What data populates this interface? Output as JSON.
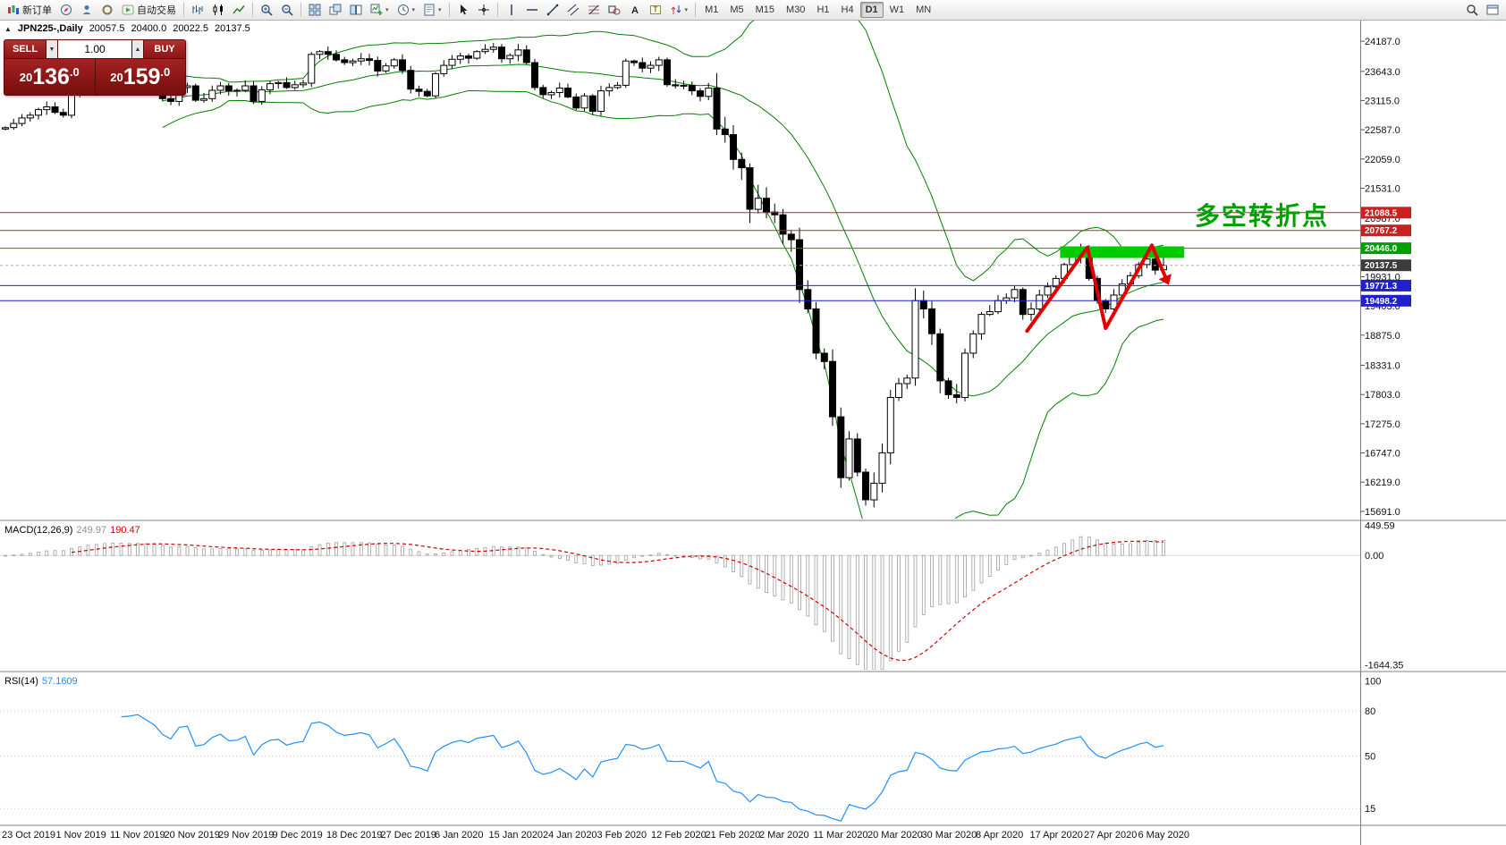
{
  "toolbar": {
    "caret_glyph": "▾",
    "items": [
      {
        "icon": "neworder",
        "label": "新订单",
        "name": "new-order-button"
      },
      {
        "icon": "compass",
        "name": "compass-button"
      },
      {
        "icon": "user",
        "name": "user-community-button"
      },
      {
        "icon": "record",
        "name": "ring-button"
      },
      {
        "icon": "play",
        "label": "自动交易",
        "name": "autotrading-button"
      },
      {
        "sep": true
      },
      {
        "icon": "barchart",
        "name": "bar-chart-button"
      },
      {
        "icon": "candlechart",
        "name": "candlestick-chart-button"
      },
      {
        "icon": "linechart",
        "name": "line-chart-button"
      },
      {
        "sep": true
      },
      {
        "icon": "zoomin",
        "name": "zoom-in-button"
      },
      {
        "icon": "zoomout",
        "name": "zoom-out-button"
      },
      {
        "sep": true
      },
      {
        "icon": "tile",
        "name": "tile-windows-button"
      },
      {
        "icon": "cascade",
        "name": "cascade-windows-button"
      },
      {
        "icon": "arrange",
        "name": "arrange-windows-button"
      },
      {
        "icon": "newchart",
        "name": "new-chart-button",
        "caret": true
      },
      {
        "icon": "clock",
        "name": "profiles-button",
        "caret": true
      },
      {
        "icon": "template",
        "name": "templates-button",
        "caret": true
      },
      {
        "sep": true
      },
      {
        "icon": "cursor",
        "name": "cursor-button"
      },
      {
        "icon": "crosshair",
        "name": "crosshair-button"
      },
      {
        "sep": true
      },
      {
        "icon": "vline",
        "name": "vertical-line-button"
      },
      {
        "icon": "hline",
        "name": "horizontal-line-button"
      },
      {
        "icon": "tline",
        "name": "trendline-button"
      },
      {
        "icon": "channel",
        "name": "channel-button"
      },
      {
        "icon": "fibo",
        "name": "fibonacci-button"
      },
      {
        "icon": "shapes",
        "name": "shapes-button"
      },
      {
        "icon": "textA",
        "name": "text-button"
      },
      {
        "icon": "labelT",
        "name": "text-label-button"
      },
      {
        "icon": "arrows",
        "name": "arrows-button",
        "caret": true
      },
      {
        "sep": true
      }
    ],
    "timeframes": [
      {
        "label": "M1"
      },
      {
        "label": "M5"
      },
      {
        "label": "M15"
      },
      {
        "label": "M30"
      },
      {
        "label": "H1"
      },
      {
        "label": "H4"
      },
      {
        "label": "D1",
        "active": true
      },
      {
        "label": "W1"
      },
      {
        "label": "MN"
      }
    ],
    "right_items": [
      {
        "icon": "search",
        "name": "search-button"
      },
      {
        "icon": "winicon",
        "name": "window-button"
      }
    ]
  },
  "chart": {
    "title": {
      "collapse_glyph": "▲",
      "symbol_period": "JPN225-,Daily",
      "open": "20057.5",
      "high": "20400.0",
      "low": "20022.5",
      "close": "20137.5"
    },
    "trade_panel": {
      "sell_label": "SELL",
      "buy_label": "BUY",
      "volume": "1.00",
      "spin_down": "▼",
      "spin_up": "▲",
      "sell_price": "20136.0",
      "buy_price": "20159.0"
    },
    "annotation": {
      "text": "多空转折点",
      "color": "#00a000"
    }
  },
  "macd": {
    "name": "MACD(12,26,9)",
    "value_main": "249.97",
    "value_signal": "190.47",
    "axis_labels": [
      "449.59",
      "0.00",
      "-1644.35"
    ],
    "colors": {
      "histogram": "#a0a0a0",
      "signal": "#d00000"
    }
  },
  "rsi": {
    "name": "RSI(14)",
    "value": "57.1609",
    "axis_labels": [
      "100",
      "80",
      "50",
      "15"
    ],
    "levels": [
      80,
      50,
      15
    ],
    "color": "#1e90ff"
  },
  "chart_data": {
    "type": "candlestick",
    "symbol": "JPN225-",
    "period": "Daily",
    "last_ohlc": {
      "open": 20057.5,
      "high": 20400.0,
      "low": 20022.5,
      "close": 20137.5
    },
    "first_open": 22600,
    "closes": [
      22625,
      22700,
      22800,
      22850,
      22950,
      23000,
      22900,
      22850,
      23250,
      23300,
      23350,
      23300,
      23380,
      23320,
      23280,
      23300,
      23350,
      23300,
      23250,
      23150,
      23100,
      23350,
      23380,
      23120,
      23150,
      23300,
      23380,
      23290,
      23300,
      23380,
      23100,
      23310,
      23420,
      23440,
      23350,
      23400,
      23430,
      23950,
      24000,
      23950,
      23850,
      23800,
      23830,
      23870,
      23840,
      23650,
      23740,
      23850,
      23660,
      23320,
      23280,
      23200,
      23600,
      23750,
      23860,
      23920,
      23880,
      24000,
      24040,
      24080,
      23870,
      23930,
      24030,
      23800,
      23350,
      23220,
      23260,
      23340,
      23180,
      22980,
      23200,
      22920,
      23290,
      23350,
      23390,
      23830,
      23800,
      23700,
      23750,
      23850,
      23400,
      23380,
      23390,
      23290,
      23190,
      23340,
      22600,
      22500,
      22050,
      21900,
      21150,
      21350,
      21100,
      21050,
      20700,
      20600,
      19700,
      19350,
      18550,
      18400,
      17400,
      16300,
      17000,
      16400,
      15900,
      16200,
      16750,
      17750,
      18000,
      18100,
      19500,
      19350,
      18900,
      18050,
      17800,
      17750,
      18550,
      18900,
      19250,
      19300,
      19500,
      19550,
      19700,
      19250,
      19350,
      19600,
      19750,
      19900,
      20150,
      20300,
      20430,
      19900,
      19500,
      19350,
      19600,
      19800,
      19950,
      20150,
      20250,
      20050,
      20137.5
    ],
    "x_tick_labels": [
      "23 Oct 2019",
      "1 Nov 2019",
      "11 Nov 2019",
      "20 Nov 2019",
      "29 Nov 2019",
      "9 Dec 2019",
      "18 Dec 2019",
      "27 Dec 2019",
      "6 Jan 2020",
      "15 Jan 2020",
      "24 Jan 2020",
      "3 Feb 2020",
      "12 Feb 2020",
      "21 Feb 2020",
      "2 Mar 2020",
      "11 Mar 2020",
      "20 Mar 2020",
      "30 Mar 2020",
      "8 Apr 2020",
      "17 Apr 2020",
      "27 Apr 2020",
      "6 May 2020"
    ],
    "y_ticks": [
      24187.0,
      23643.0,
      23115.0,
      22587.0,
      22059.0,
      21531.0,
      20987.0,
      20459.0,
      19931.0,
      19403.0,
      18875.0,
      18331.0,
      17803.0,
      17275.0,
      16747.0,
      16219.0,
      15691.0
    ],
    "price_range": [
      15560,
      24560
    ],
    "bollinger": {
      "period": 20,
      "deviation": 2,
      "color": "#008000"
    },
    "price_lines": [
      {
        "price": 21088.5,
        "label": "21088.5",
        "color": "#cc2020"
      },
      {
        "price": 20767.2,
        "label": "20767.2",
        "color": "#cc2020"
      },
      {
        "price": 20446.0,
        "label": "20446.0",
        "color": "#00a000"
      },
      {
        "price": 19771.3,
        "label": "19771.3",
        "color": "#2020cc"
      },
      {
        "price": 19498.2,
        "label": "19498.2",
        "color": "#2020cc"
      }
    ],
    "current_price": {
      "value": 20137.5,
      "label": "20137.5",
      "color": "#3c3c3c"
    },
    "resistance_zone": {
      "i1": 127.5,
      "i2": 142.5,
      "price_top": 20480,
      "price_bottom": 20270,
      "color": "#00cc00"
    },
    "zigzag": {
      "color": "#e00000",
      "points": [
        [
          123.5,
          18950
        ],
        [
          130.8,
          20460
        ],
        [
          133.0,
          19000
        ],
        [
          138.6,
          20500
        ],
        [
          140.3,
          19900
        ]
      ]
    },
    "macd_axis": {
      "max": 500,
      "min": -1720
    },
    "rsi_axis": {
      "max": 105,
      "min": 5
    }
  }
}
